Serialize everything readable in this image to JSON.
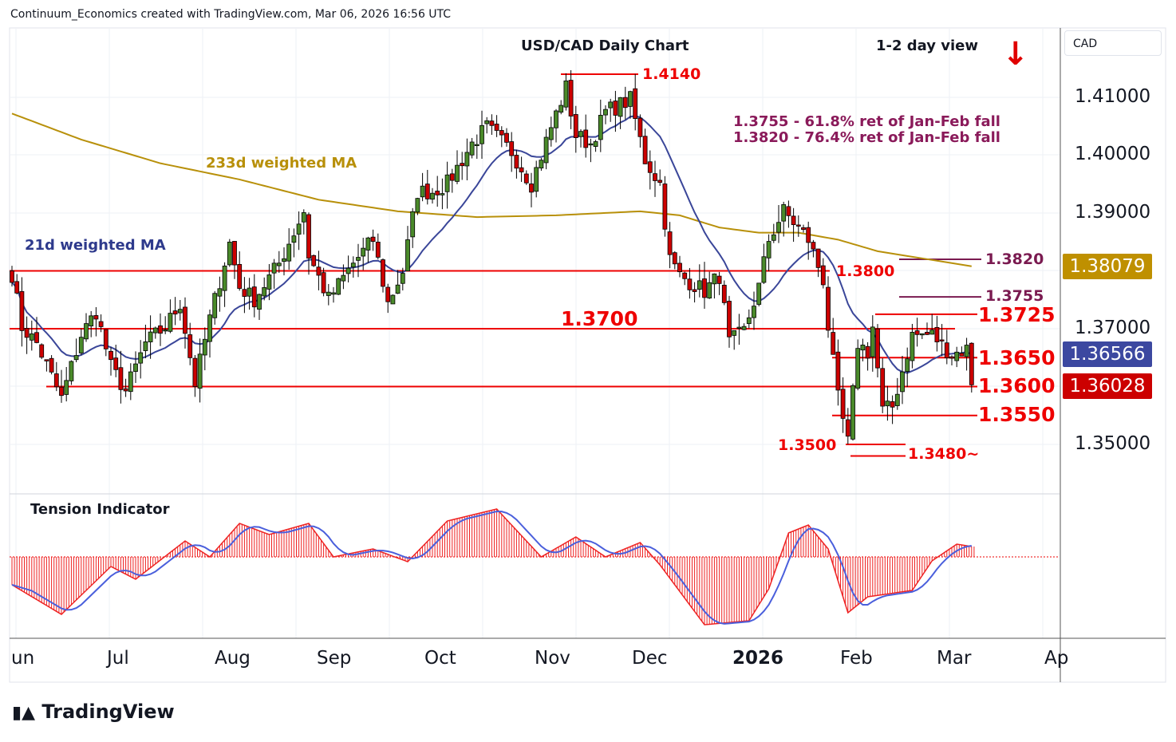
{
  "header": "Continuum_Economics created with TradingView.com, Mar 06, 2026 16:56 UTC",
  "title": "USD/CAD Daily Chart",
  "view": "1-2 day view",
  "direction_icon": "arrow-down",
  "currency": "CAD",
  "ma233_label": "233d weighted MA",
  "ma21_label": "21d weighted MA",
  "fib": [
    "1.3755 - 61.8% ret of Jan-Feb fall",
    "1.3820 - 76.4% ret of Jan-Feb fall"
  ],
  "indicator_label": "Tension Indicator",
  "logo": "TradingView",
  "colors": {
    "up": "#4a8a2a",
    "down": "#cc0000",
    "ma21": "#3a4699",
    "ma233": "#b8900a",
    "level": "#ee0000",
    "fib": "#7a1a50"
  },
  "chart_data": {
    "type": "candlestick",
    "title": "USD/CAD Daily Chart",
    "x_tick_labels": [
      "un",
      "Jul",
      "Aug",
      "Sep",
      "Oct",
      "Nov",
      "Dec",
      "2026",
      "Feb",
      "Mar",
      "Ap"
    ],
    "y_tick_labels": [
      "1.41000",
      "1.40000",
      "1.39000",
      "1.37000",
      "1.35000"
    ],
    "ylim": [
      1.3435,
      1.4155
    ],
    "close_waypoints": [
      [
        0,
        1.3795
      ],
      [
        2,
        1.3703
      ],
      [
        5,
        1.3675
      ],
      [
        10,
        1.3579
      ],
      [
        14,
        1.3689
      ],
      [
        17,
        1.373
      ],
      [
        20,
        1.3634
      ],
      [
        23,
        1.3592
      ],
      [
        27,
        1.3675
      ],
      [
        31,
        1.3703
      ],
      [
        34,
        1.3744
      ],
      [
        37,
        1.3606
      ],
      [
        40,
        1.3717
      ],
      [
        44,
        1.3848
      ],
      [
        46,
        1.3772
      ],
      [
        49,
        1.3751
      ],
      [
        54,
        1.3813
      ],
      [
        59,
        1.3903
      ],
      [
        60,
        1.3827
      ],
      [
        64,
        1.3751
      ],
      [
        69,
        1.3813
      ],
      [
        73,
        1.3854
      ],
      [
        76,
        1.3744
      ],
      [
        79,
        1.3799
      ],
      [
        82,
        1.3937
      ],
      [
        85,
        1.3937
      ],
      [
        88,
        1.3951
      ],
      [
        93,
        1.402
      ],
      [
        96,
        1.4048
      ],
      [
        101,
        1.4006
      ],
      [
        105,
        1.3951
      ],
      [
        109,
        1.4048
      ],
      [
        112,
        1.4117
      ],
      [
        114,
        1.4034
      ],
      [
        117,
        1.402
      ],
      [
        120,
        1.4075
      ],
      [
        125,
        1.4096
      ],
      [
        128,
        1.3992
      ],
      [
        131,
        1.3951
      ],
      [
        133,
        1.382
      ],
      [
        135,
        1.3792
      ],
      [
        140,
        1.3765
      ],
      [
        143,
        1.3792
      ],
      [
        145,
        1.3675
      ],
      [
        148,
        1.3696
      ],
      [
        151,
        1.3772
      ],
      [
        153,
        1.3854
      ],
      [
        156,
        1.3903
      ],
      [
        159,
        1.3875
      ],
      [
        161,
        1.3854
      ],
      [
        164,
        1.3785
      ],
      [
        165,
        1.3703
      ],
      [
        167,
        1.3579
      ],
      [
        169,
        1.3503
      ],
      [
        171,
        1.3675
      ],
      [
        173,
        1.366
      ],
      [
        174,
        1.3703
      ],
      [
        176,
        1.3558
      ],
      [
        178,
        1.3565
      ],
      [
        180,
        1.3627
      ],
      [
        182,
        1.3689
      ],
      [
        186,
        1.369
      ],
      [
        190,
        1.3655
      ],
      [
        193,
        1.3665
      ],
      [
        194,
        1.3603
      ]
    ],
    "ma233_waypoints": [
      [
        0,
        1.4072
      ],
      [
        14,
        1.4027
      ],
      [
        30,
        1.3986
      ],
      [
        46,
        1.3958
      ],
      [
        62,
        1.3923
      ],
      [
        78,
        1.3903
      ],
      [
        94,
        1.3893
      ],
      [
        110,
        1.3896
      ],
      [
        127,
        1.3903
      ],
      [
        135,
        1.3896
      ],
      [
        143,
        1.3875
      ],
      [
        151,
        1.3866
      ],
      [
        159,
        1.3866
      ],
      [
        167,
        1.3854
      ],
      [
        175,
        1.3834
      ],
      [
        183,
        1.3823
      ],
      [
        194,
        1.3808
      ]
    ],
    "tension_waypoints": [
      [
        0,
        -35
      ],
      [
        10,
        -72
      ],
      [
        20,
        -12
      ],
      [
        25,
        -28
      ],
      [
        35,
        20
      ],
      [
        40,
        0
      ],
      [
        46,
        42
      ],
      [
        52,
        28
      ],
      [
        60,
        42
      ],
      [
        65,
        0
      ],
      [
        73,
        10
      ],
      [
        80,
        -6
      ],
      [
        88,
        45
      ],
      [
        98,
        60
      ],
      [
        104,
        20
      ],
      [
        107,
        0
      ],
      [
        114,
        25
      ],
      [
        120,
        0
      ],
      [
        127,
        18
      ],
      [
        131,
        -10
      ],
      [
        140,
        -85
      ],
      [
        149,
        -80
      ],
      [
        153,
        -40
      ],
      [
        157,
        30
      ],
      [
        161,
        40
      ],
      [
        165,
        10
      ],
      [
        169,
        -70
      ],
      [
        173,
        -50
      ],
      [
        182,
        -42
      ],
      [
        186,
        -5
      ],
      [
        191,
        16
      ],
      [
        194,
        13
      ]
    ],
    "levels": [
      {
        "price": 1.414,
        "label": "1.4140"
      },
      {
        "price": 1.382,
        "label": "1.3820",
        "kind": "fib"
      },
      {
        "price": 1.38,
        "label": "1.3800"
      },
      {
        "price": 1.3755,
        "label": "1.3755",
        "kind": "fib"
      },
      {
        "price": 1.3725,
        "label": "1.3725"
      },
      {
        "price": 1.37,
        "label": "1.3700"
      },
      {
        "price": 1.365,
        "label": "1.3650"
      },
      {
        "price": 1.36,
        "label": "1.3600"
      },
      {
        "price": 1.355,
        "label": "1.3550"
      },
      {
        "price": 1.35,
        "label": "1.3500"
      },
      {
        "price": 1.348,
        "label": "1.3480~"
      }
    ],
    "last_values": {
      "ma233": "1.38079",
      "ma21": "1.36566",
      "close": "1.36028"
    }
  }
}
